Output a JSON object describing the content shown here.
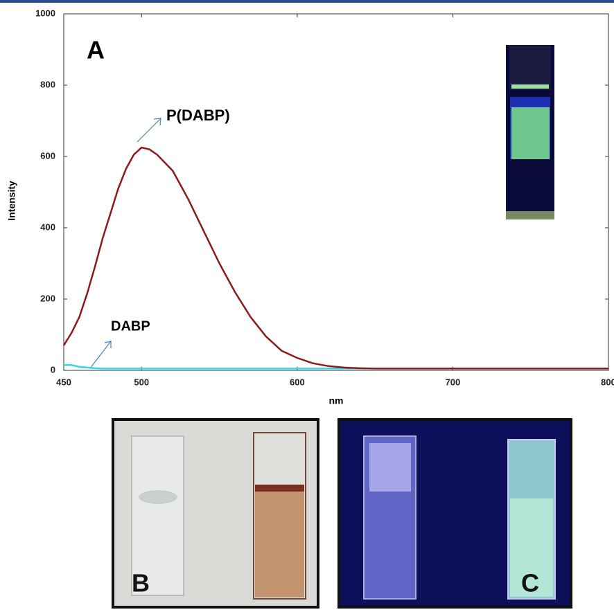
{
  "chart_data": {
    "type": "line",
    "panel_label": "A",
    "x_label": "nm",
    "y_label": "Intensity",
    "x": [
      450,
      455,
      460,
      465,
      470,
      475,
      480,
      485,
      490,
      495,
      500,
      505,
      510,
      520,
      530,
      540,
      550,
      560,
      570,
      580,
      590,
      600,
      610,
      620,
      630,
      640,
      650,
      700,
      750,
      800
    ],
    "series": [
      {
        "name": "P(DABP)",
        "color": "#8b1a1a",
        "values": [
          70,
          105,
          150,
          215,
          290,
          370,
          440,
          510,
          565,
          605,
          625,
          620,
          605,
          560,
          480,
          390,
          300,
          220,
          150,
          95,
          55,
          35,
          20,
          12,
          8,
          6,
          5,
          5,
          5,
          5
        ]
      },
      {
        "name": "DABP",
        "color": "#33d6e6",
        "values": [
          15,
          15,
          10,
          8,
          6,
          5,
          5,
          5,
          5,
          5,
          5,
          5,
          5,
          5,
          5,
          5,
          5,
          5,
          5,
          5,
          5,
          5,
          5,
          5,
          5,
          5,
          5,
          5,
          5,
          5
        ]
      }
    ],
    "xlim": [
      450,
      800
    ],
    "ylim": [
      0,
      1000
    ],
    "xticks": [
      450,
      500,
      600,
      700,
      800
    ],
    "yticks": [
      0,
      200,
      400,
      600,
      800,
      1000
    ],
    "photo_labels": [
      "B",
      "C"
    ]
  }
}
